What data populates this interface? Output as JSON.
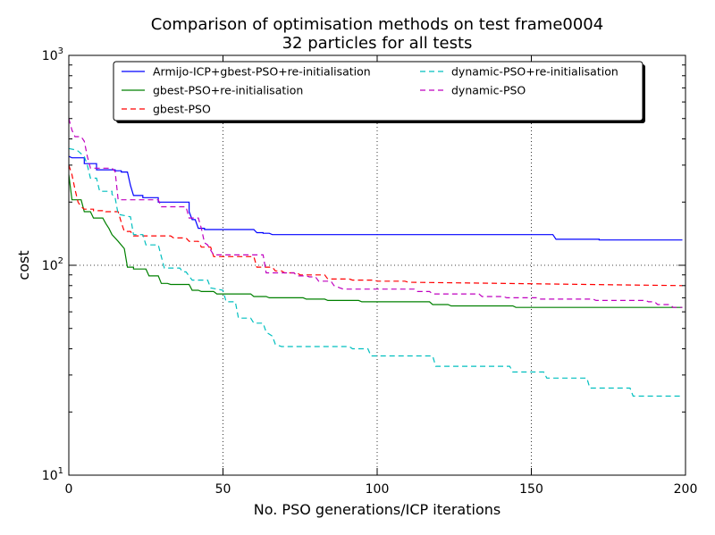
{
  "chart_data": {
    "type": "line",
    "title_line1": "Comparison of optimisation methods on test frame0004",
    "title_line2": "32 particles for all tests",
    "xlabel": "No. PSO generations/ICP iterations",
    "ylabel": "cost",
    "xlim": [
      0,
      200
    ],
    "ylim": [
      10,
      1000
    ],
    "yscale": "log",
    "grid": true,
    "legend_position": "top",
    "x_ticks": [
      0,
      50,
      100,
      150,
      200
    ],
    "x_tick_labels": [
      "0",
      "50",
      "100",
      "150",
      "200"
    ],
    "y_ticks": [
      10,
      100,
      1000
    ],
    "y_tick_labels": [
      {
        "base": "10",
        "exp": "1"
      },
      {
        "base": "10",
        "exp": "2"
      },
      {
        "base": "10",
        "exp": "3"
      }
    ],
    "series": [
      {
        "name": "Armijo-ICP+gbest-PSO+re-initialisation",
        "color": "#0000ff",
        "dash": "solid",
        "points": [
          [
            0,
            330
          ],
          [
            1,
            325
          ],
          [
            5,
            325
          ],
          [
            5,
            305
          ],
          [
            9,
            305
          ],
          [
            9,
            285
          ],
          [
            15,
            285
          ],
          [
            15,
            282
          ],
          [
            17,
            282
          ],
          [
            17,
            278
          ],
          [
            19,
            278
          ],
          [
            20,
            240
          ],
          [
            21,
            215
          ],
          [
            24,
            215
          ],
          [
            24,
            210
          ],
          [
            29,
            210
          ],
          [
            29,
            200
          ],
          [
            39,
            200
          ],
          [
            39,
            180
          ],
          [
            40,
            165
          ],
          [
            41,
            165
          ],
          [
            42,
            150
          ],
          [
            44,
            150
          ],
          [
            44,
            148
          ],
          [
            60,
            148
          ],
          [
            61,
            143
          ],
          [
            63,
            143
          ],
          [
            63,
            142
          ],
          [
            65,
            142
          ],
          [
            66,
            140
          ],
          [
            157,
            140
          ],
          [
            158,
            133
          ],
          [
            172,
            133
          ],
          [
            172,
            132
          ],
          [
            199,
            132
          ]
        ]
      },
      {
        "name": "gbest-PSO+re-initialisation",
        "color": "#008000",
        "dash": "solid",
        "points": [
          [
            0,
            270
          ],
          [
            1,
            205
          ],
          [
            4,
            205
          ],
          [
            5,
            180
          ],
          [
            7,
            180
          ],
          [
            8,
            168
          ],
          [
            11,
            168
          ],
          [
            12,
            158
          ],
          [
            13,
            150
          ],
          [
            14,
            140
          ],
          [
            16,
            130
          ],
          [
            18,
            120
          ],
          [
            19,
            98
          ],
          [
            21,
            98
          ],
          [
            21,
            96
          ],
          [
            25,
            96
          ],
          [
            26,
            89
          ],
          [
            29,
            89
          ],
          [
            30,
            82
          ],
          [
            32,
            82
          ],
          [
            33,
            81
          ],
          [
            39,
            81
          ],
          [
            40,
            76
          ],
          [
            42,
            76
          ],
          [
            43,
            75
          ],
          [
            47,
            75
          ],
          [
            48,
            73
          ],
          [
            59,
            73
          ],
          [
            60,
            71
          ],
          [
            64,
            71
          ],
          [
            65,
            70
          ],
          [
            76,
            70
          ],
          [
            77,
            69
          ],
          [
            83,
            69
          ],
          [
            84,
            68
          ],
          [
            94,
            68
          ],
          [
            95,
            67
          ],
          [
            117,
            67
          ],
          [
            118,
            65
          ],
          [
            123,
            65
          ],
          [
            124,
            64
          ],
          [
            144,
            64
          ],
          [
            145,
            63
          ],
          [
            199,
            63
          ]
        ]
      },
      {
        "name": "gbest-PSO",
        "color": "#ff0000",
        "dash": "6,4",
        "points": [
          [
            0,
            300
          ],
          [
            1,
            270
          ],
          [
            2,
            230
          ],
          [
            3,
            200
          ],
          [
            4,
            190
          ],
          [
            5,
            185
          ],
          [
            8,
            185
          ],
          [
            8,
            182
          ],
          [
            12,
            182
          ],
          [
            12,
            180
          ],
          [
            16,
            180
          ],
          [
            17,
            160
          ],
          [
            18,
            145
          ],
          [
            20,
            145
          ],
          [
            21,
            138
          ],
          [
            33,
            138
          ],
          [
            34,
            135
          ],
          [
            38,
            135
          ],
          [
            39,
            130
          ],
          [
            42,
            130
          ],
          [
            43,
            122
          ],
          [
            46,
            122
          ],
          [
            47,
            110
          ],
          [
            60,
            110
          ],
          [
            61,
            98
          ],
          [
            66,
            98
          ],
          [
            67,
            94
          ],
          [
            69,
            94
          ],
          [
            70,
            92
          ],
          [
            74,
            92
          ],
          [
            75,
            90
          ],
          [
            83,
            90
          ],
          [
            84,
            86
          ],
          [
            91,
            86
          ],
          [
            92,
            85
          ],
          [
            99,
            85
          ],
          [
            100,
            84
          ],
          [
            109,
            84
          ],
          [
            110,
            83
          ],
          [
            199,
            80
          ]
        ]
      },
      {
        "name": "dynamic-PSO+re-initialisation",
        "color": "#00bfbf",
        "dash": "6,4",
        "points": [
          [
            0,
            360
          ],
          [
            2,
            355
          ],
          [
            3,
            350
          ],
          [
            5,
            330
          ],
          [
            6,
            300
          ],
          [
            7,
            260
          ],
          [
            9,
            260
          ],
          [
            10,
            225
          ],
          [
            14,
            225
          ],
          [
            14,
            218
          ],
          [
            15,
            210
          ],
          [
            16,
            175
          ],
          [
            20,
            170
          ],
          [
            21,
            140
          ],
          [
            24,
            140
          ],
          [
            25,
            125
          ],
          [
            29,
            125
          ],
          [
            30,
            110
          ],
          [
            31,
            97
          ],
          [
            36,
            97
          ],
          [
            37,
            93
          ],
          [
            38,
            93
          ],
          [
            40,
            85
          ],
          [
            45,
            85
          ],
          [
            46,
            78
          ],
          [
            50,
            76
          ],
          [
            51,
            67
          ],
          [
            54,
            67
          ],
          [
            55,
            56
          ],
          [
            59,
            56
          ],
          [
            60,
            53
          ],
          [
            63,
            53
          ],
          [
            64,
            48
          ],
          [
            66,
            46
          ],
          [
            67,
            42
          ],
          [
            69,
            41
          ],
          [
            91,
            41
          ],
          [
            92,
            40
          ],
          [
            97,
            40
          ],
          [
            98,
            37
          ],
          [
            118,
            37
          ],
          [
            119,
            33
          ],
          [
            143,
            33
          ],
          [
            144,
            31
          ],
          [
            154,
            31
          ],
          [
            155,
            29
          ],
          [
            168,
            29
          ],
          [
            169,
            26
          ],
          [
            182,
            26
          ],
          [
            183,
            23.8
          ],
          [
            199,
            23.8
          ]
        ]
      },
      {
        "name": "dynamic-PSO",
        "color": "#bf00bf",
        "dash": "6,4",
        "points": [
          [
            0,
            500
          ],
          [
            1,
            440
          ],
          [
            2,
            410
          ],
          [
            4,
            410
          ],
          [
            5,
            390
          ],
          [
            6,
            330
          ],
          [
            7,
            290
          ],
          [
            14,
            290
          ],
          [
            15,
            280
          ],
          [
            16,
            205
          ],
          [
            29,
            205
          ],
          [
            30,
            190
          ],
          [
            38,
            190
          ],
          [
            39,
            168
          ],
          [
            42,
            168
          ],
          [
            43,
            150
          ],
          [
            44,
            128
          ],
          [
            45,
            125
          ],
          [
            46,
            118
          ],
          [
            47,
            112
          ],
          [
            63,
            112
          ],
          [
            64,
            92
          ],
          [
            73,
            92
          ],
          [
            74,
            89
          ],
          [
            77,
            89
          ],
          [
            78,
            88
          ],
          [
            80,
            88
          ],
          [
            81,
            84
          ],
          [
            85,
            84
          ],
          [
            86,
            80
          ],
          [
            88,
            78
          ],
          [
            89,
            77
          ],
          [
            112,
            77
          ],
          [
            113,
            75
          ],
          [
            117,
            75
          ],
          [
            118,
            73
          ],
          [
            133,
            73
          ],
          [
            134,
            71
          ],
          [
            141,
            71
          ],
          [
            142,
            70
          ],
          [
            152,
            70
          ],
          [
            153,
            69
          ],
          [
            170,
            69
          ],
          [
            171,
            68
          ],
          [
            187,
            68
          ],
          [
            188,
            67
          ],
          [
            190,
            67
          ],
          [
            191,
            65
          ],
          [
            195,
            65
          ],
          [
            196,
            63
          ],
          [
            199,
            63
          ]
        ]
      }
    ]
  }
}
